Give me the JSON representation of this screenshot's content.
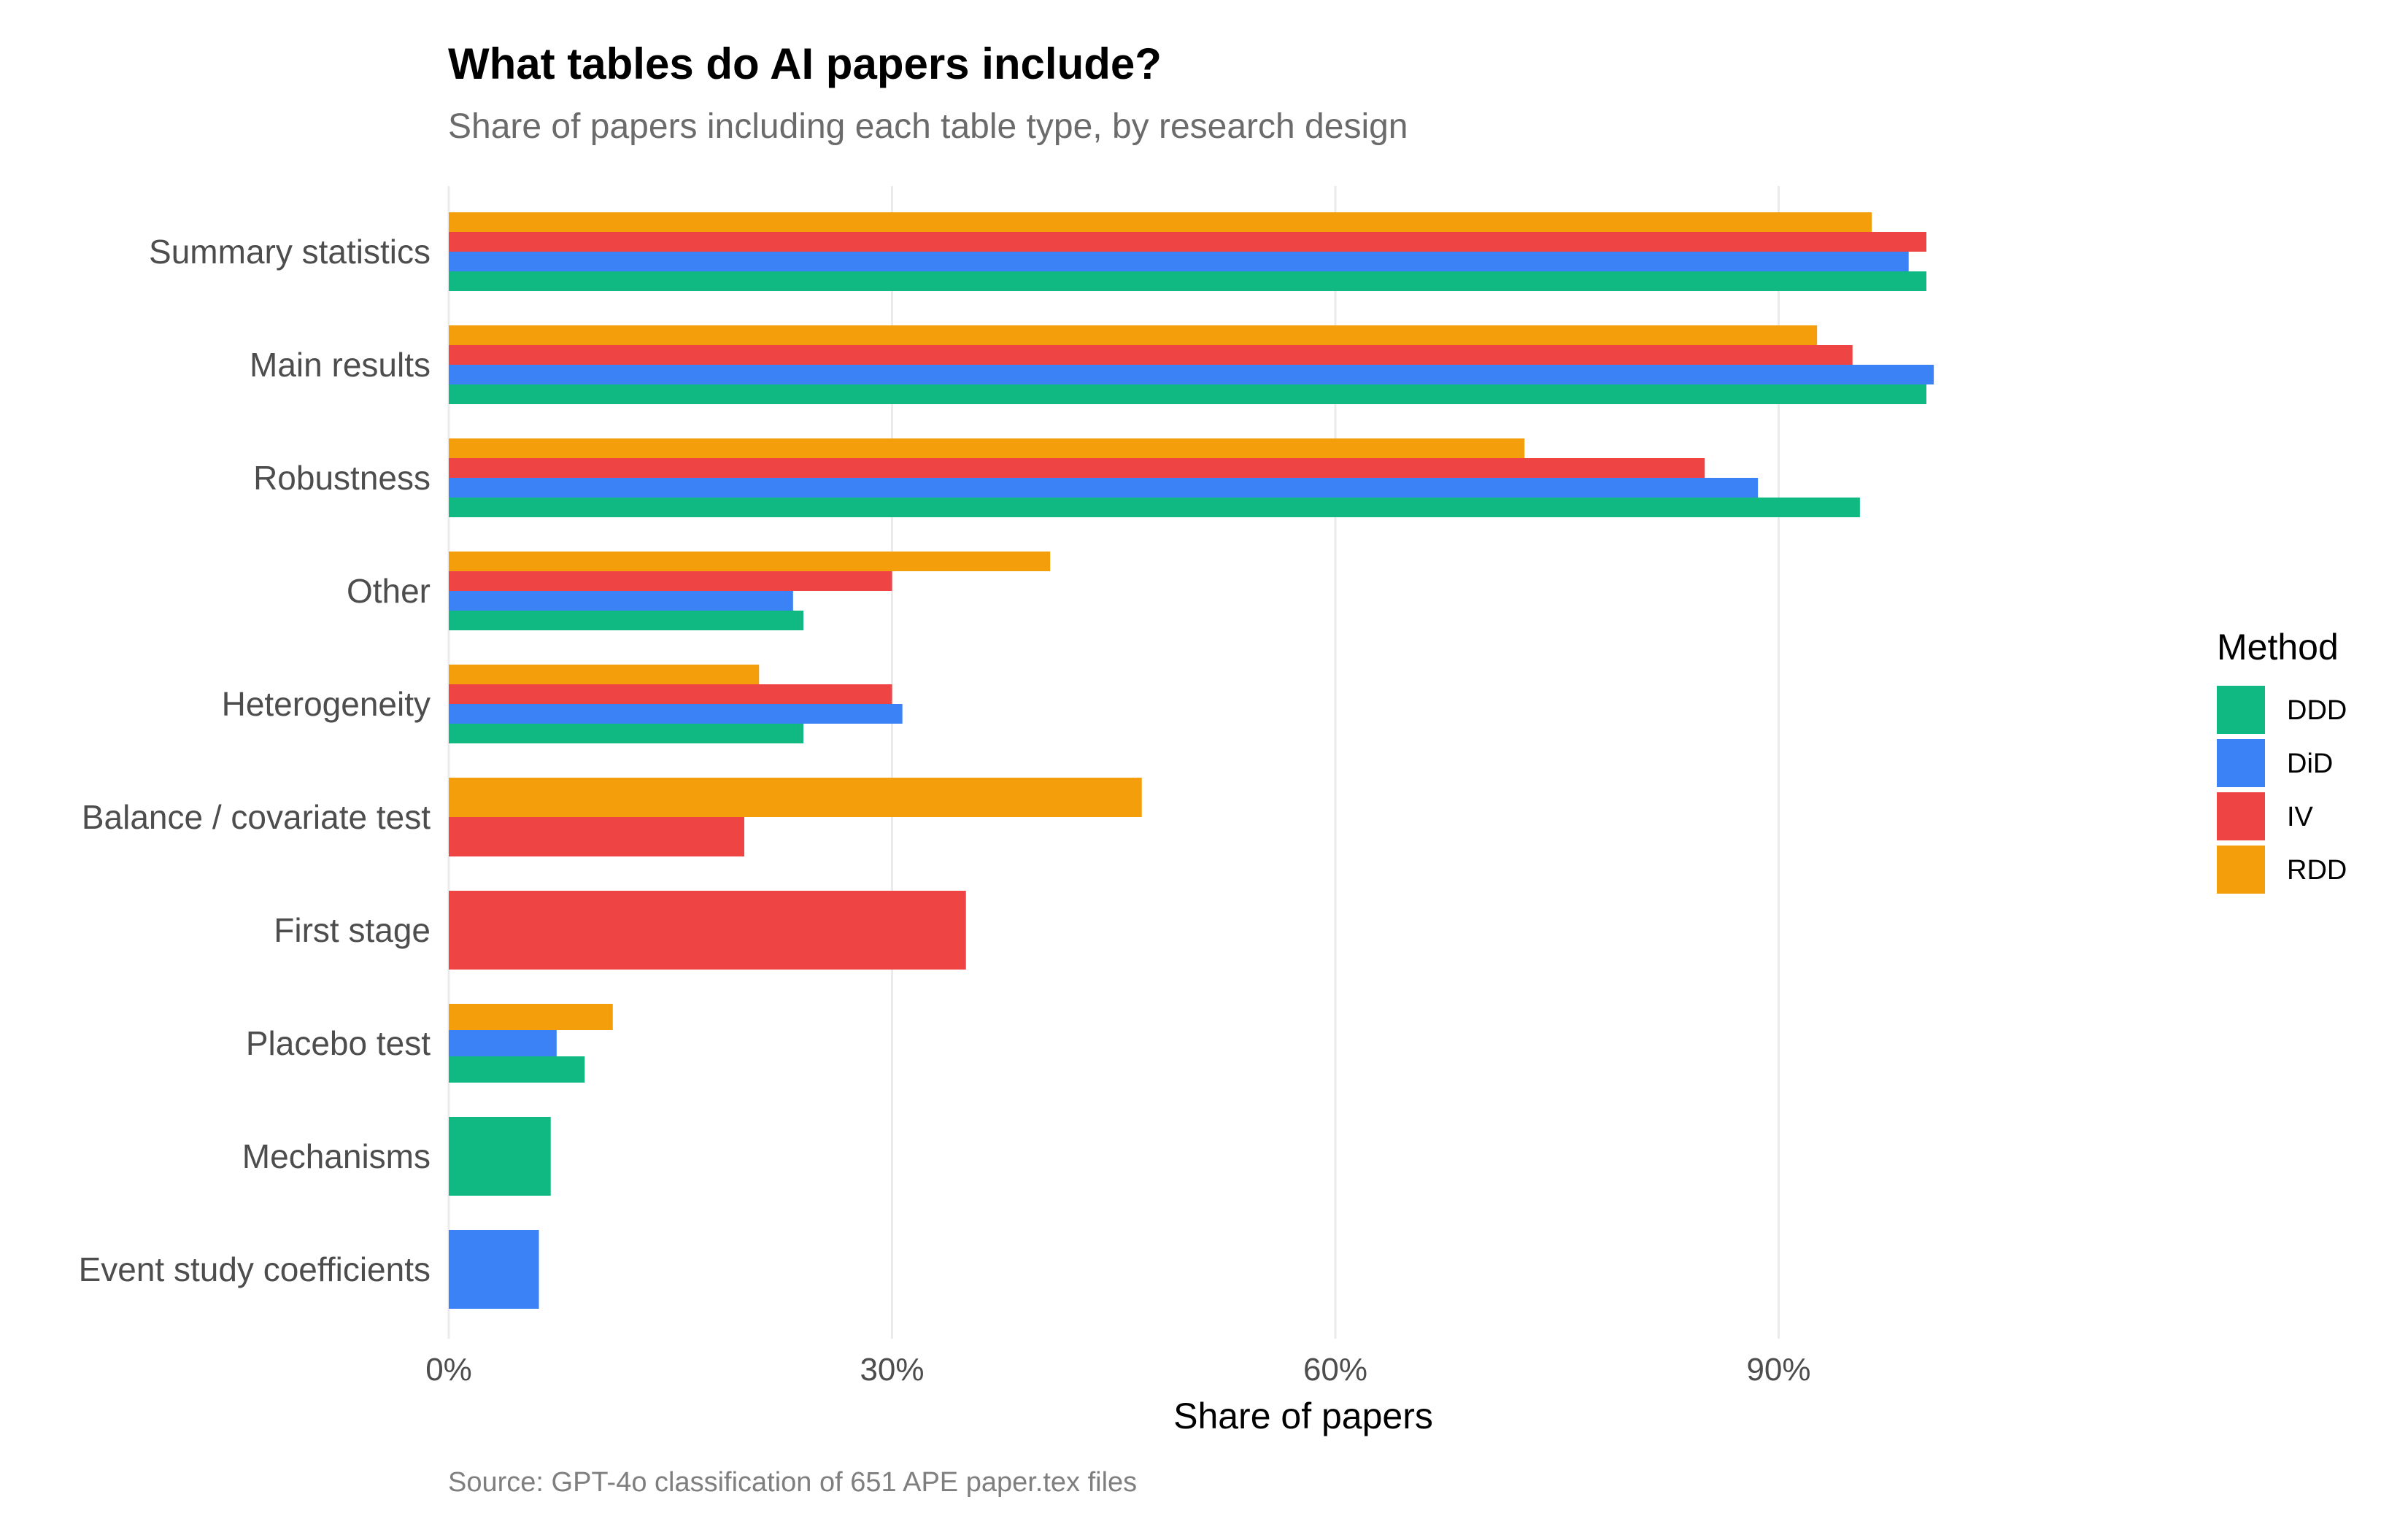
{
  "chart_data": {
    "type": "bar",
    "orientation": "horizontal",
    "title": "What tables do AI papers include?",
    "subtitle": "Share of papers including each table type, by research design",
    "xlabel": "Share of papers",
    "ylabel": "",
    "caption": "Source: GPT-4o classification of 651 APE paper.tex files",
    "xlim": [
      0,
      100
    ],
    "xticks": [
      0,
      30,
      60,
      90
    ],
    "xtick_labels": [
      "0%",
      "30%",
      "60%",
      "90%"
    ],
    "grid": true,
    "legend": {
      "title": "Method",
      "placement": "right"
    },
    "categories": [
      "Summary statistics",
      "Main results",
      "Robustness",
      "Other",
      "Heterogeneity",
      "Balance / covariate test",
      "First stage",
      "Placebo test",
      "Mechanisms",
      "Event study coefficients"
    ],
    "series": [
      {
        "name": "DDD",
        "color": "#10b981",
        "values": [
          100,
          100,
          95.5,
          24,
          24,
          null,
          null,
          9.2,
          6.9,
          null
        ]
      },
      {
        "name": "DiD",
        "color": "#3b82f6",
        "values": [
          98.8,
          100.5,
          88.6,
          23.3,
          30.7,
          null,
          null,
          7.3,
          null,
          6.1
        ]
      },
      {
        "name": "IV",
        "color": "#ef4444",
        "values": [
          100,
          95,
          85,
          30,
          30,
          20,
          35,
          null,
          null,
          null
        ]
      },
      {
        "name": "RDD",
        "color": "#f59e0b",
        "values": [
          96.3,
          92.6,
          72.8,
          40.7,
          21,
          46.9,
          null,
          11.1,
          null,
          null
        ]
      }
    ]
  }
}
